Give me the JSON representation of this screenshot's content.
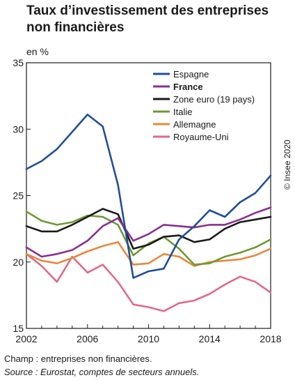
{
  "title": "Taux d’investissement des entreprises non financières",
  "footer": {
    "champ": "Champ : entreprises non financières.",
    "source": "Source : Eurostat, comptes de secteurs annuels."
  },
  "credit": "© Insee 2020",
  "chart_data": {
    "type": "line",
    "title": "Taux d’investissement des entreprises non financières",
    "xlabel": "",
    "ylabel": "en %",
    "xlim": [
      2002,
      2018
    ],
    "ylim": [
      15,
      35
    ],
    "x_ticks": [
      2002,
      2006,
      2010,
      2014,
      2018
    ],
    "y_ticks": [
      15,
      20,
      25,
      30,
      35
    ],
    "grid": false,
    "legend": "top-right",
    "x": [
      2002,
      2003,
      2004,
      2005,
      2006,
      2007,
      2008,
      2009,
      2010,
      2011,
      2012,
      2013,
      2014,
      2015,
      2016,
      2017,
      2018
    ],
    "series": [
      {
        "name": "Espagne",
        "color": "#1f4e99",
        "values": [
          27.0,
          27.6,
          28.5,
          29.8,
          31.1,
          30.2,
          25.8,
          18.8,
          19.3,
          19.5,
          21.7,
          22.7,
          23.9,
          23.4,
          24.5,
          25.2,
          26.5
        ]
      },
      {
        "name": "France",
        "color": "#8b2f8f",
        "label_color": "#8b2f8f",
        "bold": true,
        "values": [
          21.1,
          20.4,
          20.6,
          20.9,
          21.6,
          22.7,
          23.3,
          21.6,
          22.1,
          22.8,
          22.7,
          22.6,
          22.8,
          22.8,
          23.2,
          23.7,
          24.1
        ]
      },
      {
        "name": "Zone euro (19 pays)",
        "color": "#1a1a1a",
        "values": [
          22.7,
          22.3,
          22.3,
          22.8,
          23.4,
          24.0,
          23.6,
          21.0,
          21.3,
          21.9,
          22.0,
          21.5,
          21.7,
          22.5,
          23.0,
          23.2,
          23.4
        ]
      },
      {
        "name": "Italie",
        "color": "#6e9a32",
        "values": [
          23.8,
          23.1,
          22.8,
          23.0,
          23.5,
          23.4,
          22.8,
          20.5,
          21.4,
          21.9,
          21.0,
          19.8,
          19.9,
          20.4,
          20.7,
          21.1,
          21.7
        ]
      },
      {
        "name": "Allemagne",
        "color": "#e8883a",
        "values": [
          20.6,
          20.1,
          19.9,
          20.3,
          20.8,
          21.2,
          21.5,
          19.8,
          19.9,
          20.6,
          20.4,
          19.7,
          20.0,
          20.1,
          20.2,
          20.5,
          21.0
        ]
      },
      {
        "name": "Royaume-Uni",
        "color": "#e06a88",
        "values": [
          20.6,
          19.7,
          18.5,
          20.4,
          19.2,
          19.8,
          18.5,
          16.8,
          16.6,
          16.3,
          16.9,
          17.1,
          17.6,
          18.3,
          18.9,
          18.5,
          17.7
        ]
      }
    ]
  }
}
